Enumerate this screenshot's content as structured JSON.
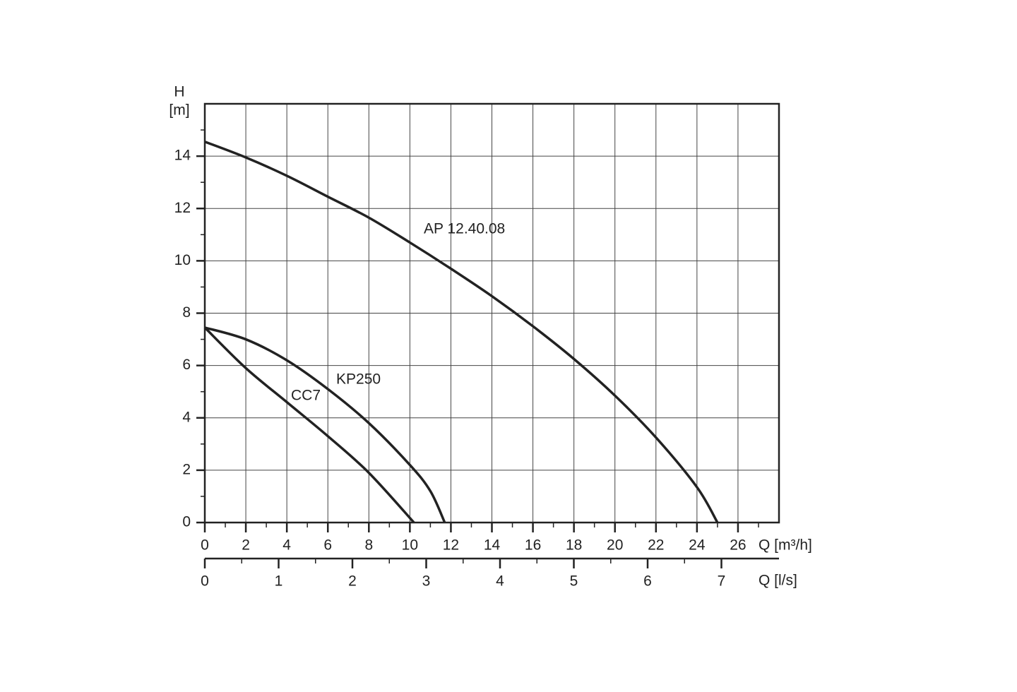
{
  "chart_data": {
    "type": "line",
    "y_label": "H",
    "y_unit": "[m]",
    "x_label": "Q [m³/h]",
    "x2_label": "Q [l/s]",
    "xlim": [
      0,
      28
    ],
    "xticks": [
      0,
      2,
      4,
      6,
      8,
      10,
      12,
      14,
      16,
      18,
      20,
      22,
      24,
      26
    ],
    "x2lim": [
      0,
      7.78
    ],
    "x2ticks": [
      0,
      1,
      2,
      3,
      4,
      5,
      6,
      7
    ],
    "ylim": [
      0,
      16
    ],
    "yticks": [
      0,
      2,
      4,
      6,
      8,
      10,
      12,
      14
    ],
    "grid": true,
    "series": [
      {
        "name": "AP 12.40.08",
        "color": "#222222",
        "x": [
          0,
          2,
          4,
          6,
          8,
          10,
          12,
          14,
          16,
          18,
          20,
          22,
          24,
          25
        ],
        "values": [
          14.55,
          13.95,
          13.25,
          12.45,
          11.65,
          10.7,
          9.7,
          8.65,
          7.5,
          6.25,
          4.85,
          3.25,
          1.35,
          0
        ]
      },
      {
        "name": "KP250",
        "color": "#222222",
        "x": [
          0,
          2,
          4,
          6,
          8,
          10,
          11,
          11.7
        ],
        "values": [
          7.45,
          7.0,
          6.2,
          5.1,
          3.8,
          2.2,
          1.2,
          0
        ]
      },
      {
        "name": "CC7",
        "color": "#222222",
        "x": [
          0,
          2,
          4,
          6,
          8,
          10.2
        ],
        "values": [
          7.45,
          5.9,
          4.6,
          3.3,
          1.9,
          0
        ]
      }
    ]
  }
}
